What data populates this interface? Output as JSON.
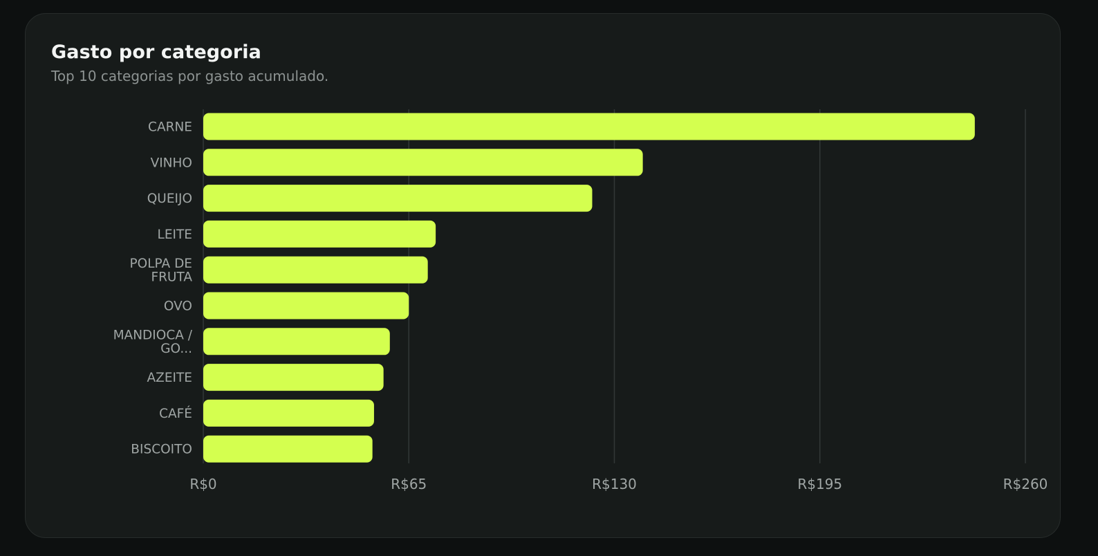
{
  "card": {
    "title": "Gasto por categoria",
    "subtitle": "Top 10 categorias por gasto acumulado."
  },
  "colors": {
    "background": "#0d1010",
    "card": "#171b1a",
    "bar": "#d4ff4f",
    "grid": "#323837",
    "label": "#a0a6a5"
  },
  "chart_data": {
    "type": "bar",
    "orientation": "horizontal",
    "categories": [
      "CARNE",
      "VINHO",
      "QUEIJO",
      "LEITE",
      "POLPA DE FRUTA",
      "OVO",
      "MANDIOCA / GO...",
      "AZEITE",
      "CAFÉ",
      "BISCOITO"
    ],
    "category_label_lines": [
      [
        "CARNE"
      ],
      [
        "VINHO"
      ],
      [
        "QUEIJO"
      ],
      [
        "LEITE"
      ],
      [
        "POLPA DE",
        "FRUTA"
      ],
      [
        "OVO"
      ],
      [
        "MANDIOCA /",
        "GO..."
      ],
      [
        "AZEITE"
      ],
      [
        "CAFÉ"
      ],
      [
        "BISCOITO"
      ]
    ],
    "values": [
      244,
      139,
      123,
      73.5,
      71,
      65,
      59,
      57,
      54,
      53.5
    ],
    "xlim": [
      0,
      260
    ],
    "x_ticks": [
      0,
      65,
      130,
      195,
      260
    ],
    "x_tick_labels": [
      "R$0",
      "R$65",
      "R$130",
      "R$195",
      "R$260"
    ],
    "grid": "vertical",
    "legend": "none"
  }
}
